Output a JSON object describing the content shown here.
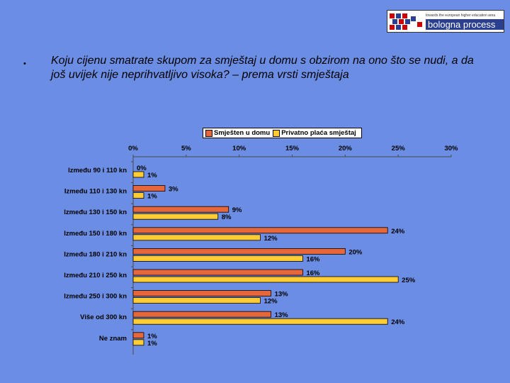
{
  "logo": {
    "tagline": "towards the european higher education area",
    "name": "bologna process"
  },
  "slide": {
    "bullet": "•",
    "question": "Koju cijenu smatrate skupom za smještaj u domu s obzirom na ono što se nudi, a da još uvijek nije neprihvatljivo visoka? – prema vrsti smještaja"
  },
  "chart_data": {
    "type": "bar",
    "orientation": "horizontal",
    "categories": [
      "Između 90 i 110 kn",
      "Između 110 i 130 kn",
      "Između 130 i 150 kn",
      "Između 150 i 180 kn",
      "Između 180 i 210 kn",
      "Između 210 i 250 kn",
      "Između 250 i 300 kn",
      "Više od 300 kn",
      "Ne znam"
    ],
    "series": [
      {
        "name": "Smješten u domu",
        "color": "#E8673A",
        "values": [
          0,
          3,
          9,
          24,
          20,
          16,
          13,
          13,
          1
        ]
      },
      {
        "name": "Privatno plaća smještaj",
        "color": "#FFCC33",
        "values": [
          1,
          1,
          8,
          12,
          16,
          25,
          12,
          24,
          1
        ]
      }
    ],
    "xlim": [
      0,
      30
    ],
    "ticks": [
      "0%",
      "5%",
      "10%",
      "15%",
      "20%",
      "25%",
      "30%"
    ],
    "tick_values": [
      0,
      5,
      10,
      15,
      20,
      25,
      30
    ],
    "value_suffix": "%",
    "axis_position": "top",
    "grid": false,
    "legend_position": "top"
  }
}
